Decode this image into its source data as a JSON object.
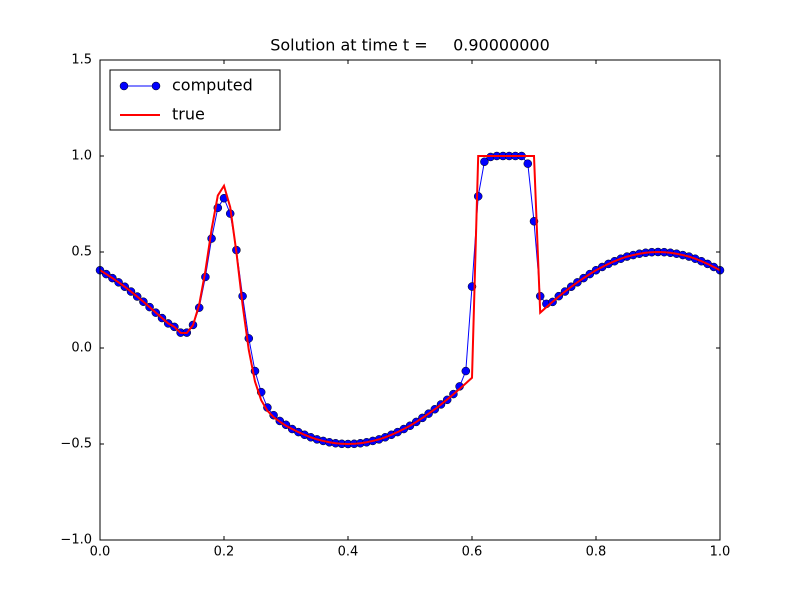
{
  "chart_data": {
    "type": "line",
    "title": "Solution at time t =     0.90000000",
    "x": [
      0,
      0.01,
      0.02,
      0.03,
      0.04,
      0.05,
      0.06,
      0.07,
      0.08,
      0.09,
      0.1,
      0.11,
      0.12,
      0.13,
      0.14,
      0.15,
      0.16,
      0.17,
      0.18,
      0.19,
      0.2,
      0.21,
      0.22,
      0.23,
      0.24,
      0.25,
      0.26,
      0.27,
      0.28,
      0.29,
      0.3,
      0.31,
      0.32,
      0.33,
      0.34,
      0.35,
      0.36,
      0.37,
      0.38,
      0.39,
      0.4,
      0.41,
      0.42,
      0.43,
      0.44,
      0.45,
      0.46,
      0.47,
      0.48,
      0.49,
      0.5,
      0.51,
      0.52,
      0.53,
      0.54,
      0.55,
      0.56,
      0.57,
      0.58,
      0.59,
      0.6,
      0.61,
      0.62,
      0.63,
      0.64,
      0.65,
      0.66,
      0.67,
      0.68,
      0.69,
      0.7,
      0.71,
      0.72,
      0.73,
      0.74,
      0.75,
      0.76,
      0.77,
      0.78,
      0.79,
      0.8,
      0.81,
      0.82,
      0.83,
      0.84,
      0.85,
      0.86,
      0.87,
      0.88,
      0.89,
      0.9,
      0.91,
      0.92,
      0.93,
      0.94,
      0.95,
      0.96,
      0.97,
      0.98,
      0.99,
      1
    ],
    "series": [
      {
        "name": "computed",
        "color": "#0000ff",
        "marker": "o",
        "values": [
          0.405,
          0.385,
          0.364,
          0.342,
          0.319,
          0.294,
          0.268,
          0.241,
          0.213,
          0.184,
          0.156,
          0.128,
          0.11,
          0.08,
          0.08,
          0.12,
          0.21,
          0.37,
          0.57,
          0.73,
          0.78,
          0.7,
          0.51,
          0.27,
          0.05,
          -0.12,
          -0.23,
          -0.31,
          -0.35,
          -0.38,
          -0.4,
          -0.422,
          -0.438,
          -0.452,
          -0.465,
          -0.476,
          -0.484,
          -0.491,
          -0.496,
          -0.499,
          -0.5,
          -0.499,
          -0.496,
          -0.491,
          -0.484,
          -0.476,
          -0.465,
          -0.452,
          -0.438,
          -0.422,
          -0.405,
          -0.385,
          -0.364,
          -0.342,
          -0.319,
          -0.294,
          -0.27,
          -0.24,
          -0.2,
          -0.12,
          0.32,
          0.79,
          0.97,
          0.995,
          1,
          1,
          1,
          1,
          1,
          0.96,
          0.66,
          0.27,
          0.23,
          0.24,
          0.27,
          0.294,
          0.319,
          0.342,
          0.364,
          0.385,
          0.405,
          0.422,
          0.438,
          0.452,
          0.465,
          0.476,
          0.484,
          0.491,
          0.496,
          0.499,
          0.5,
          0.499,
          0.496,
          0.491,
          0.484,
          0.476,
          0.465,
          0.452,
          0.438,
          0.422,
          0.405
        ]
      },
      {
        "name": "true",
        "color": "#ff0000",
        "values": [
          0.405,
          0.385,
          0.364,
          0.342,
          0.319,
          0.294,
          0.268,
          0.241,
          0.213,
          0.184,
          0.156,
          0.128,
          0.11,
          0.079,
          0.078,
          0.119,
          0.226,
          0.402,
          0.618,
          0.794,
          0.845,
          0.734,
          0.499,
          0.224,
          -0.011,
          -0.175,
          -0.272,
          -0.327,
          -0.36,
          -0.384,
          -0.405,
          -0.422,
          -0.438,
          -0.452,
          -0.465,
          -0.476,
          -0.484,
          -0.491,
          -0.496,
          -0.499,
          -0.5,
          -0.499,
          -0.496,
          -0.491,
          -0.484,
          -0.476,
          -0.465,
          -0.452,
          -0.438,
          -0.422,
          -0.405,
          -0.385,
          -0.364,
          -0.342,
          -0.319,
          -0.294,
          -0.268,
          -0.241,
          -0.213,
          -0.184,
          -0.155,
          1,
          1,
          1,
          1,
          1,
          1,
          1,
          1,
          1,
          1,
          0.184,
          0.213,
          0.241,
          0.268,
          0.294,
          0.319,
          0.342,
          0.364,
          0.385,
          0.405,
          0.422,
          0.438,
          0.452,
          0.465,
          0.476,
          0.484,
          0.491,
          0.496,
          0.499,
          0.5,
          0.499,
          0.496,
          0.491,
          0.484,
          0.476,
          0.465,
          0.452,
          0.438,
          0.422,
          0.405
        ]
      }
    ],
    "xlim": [
      0,
      1
    ],
    "xticks": [
      {
        "value": 0,
        "label": "0.0"
      },
      {
        "value": 0.2,
        "label": "0.2"
      },
      {
        "value": 0.4,
        "label": "0.4"
      },
      {
        "value": 0.6,
        "label": "0.6"
      },
      {
        "value": 0.8,
        "label": "0.8"
      },
      {
        "value": 1,
        "label": "1.0"
      }
    ],
    "ylim": [
      -1,
      1.5
    ],
    "yticks": [
      {
        "value": -1,
        "label": "−1.0"
      },
      {
        "value": -0.5,
        "label": "−0.5"
      },
      {
        "value": 0,
        "label": "0.0"
      },
      {
        "value": 0.5,
        "label": "0.5"
      },
      {
        "value": 1,
        "label": "1.0"
      },
      {
        "value": 1.5,
        "label": "1.5"
      }
    ],
    "grid": false,
    "legend": "upper left"
  }
}
